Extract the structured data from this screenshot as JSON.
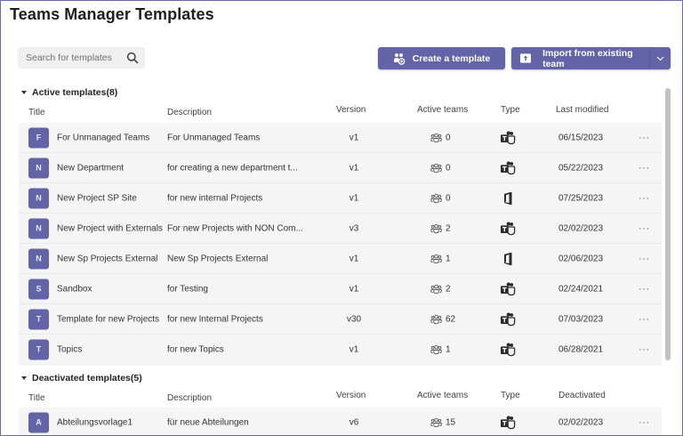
{
  "page": {
    "title": "Teams Manager Templates"
  },
  "search": {
    "placeholder": "Search for templates",
    "value": "",
    "icon": "search-icon"
  },
  "toolbar": {
    "create_label": "Create a template",
    "create_icon": "people-add-icon",
    "import_label": "Import from existing team",
    "import_icon": "import-icon",
    "import_menu_icon": "chevron-down-icon"
  },
  "colors": {
    "accent": "#6264a7",
    "frame_border": "#6a6db3",
    "row_bg": "#f5f5f5"
  },
  "active": {
    "header": "Active templates(8)",
    "columns": {
      "title": "Title",
      "description": "Description",
      "version": "Version",
      "active_teams": "Active teams",
      "type": "Type",
      "date": "Last modified"
    },
    "rows": [
      {
        "initial": "F",
        "title": "For Unmanaged Teams",
        "description": "For Unmanaged Teams",
        "version": "v1",
        "teams": "0",
        "type": "teams",
        "date": "06/15/2023",
        "more": "···"
      },
      {
        "initial": "N",
        "title": "New Department",
        "description": "for creating a new department t...",
        "version": "v1",
        "teams": "0",
        "type": "teams",
        "date": "05/22/2023",
        "more": "···"
      },
      {
        "initial": "N",
        "title": "New Project SP Site",
        "description": "for new internal Projects",
        "version": "v1",
        "teams": "0",
        "type": "office",
        "date": "07/25/2023",
        "more": "···"
      },
      {
        "initial": "N",
        "title": "New Project with Externals",
        "description": "For new Projects with NON Com...",
        "version": "v3",
        "teams": "2",
        "type": "teams",
        "date": "02/02/2023",
        "more": "···"
      },
      {
        "initial": "N",
        "title": "New Sp Projects External",
        "description": "New Sp Projects External",
        "version": "v1",
        "teams": "1",
        "type": "office",
        "date": "02/06/2023",
        "more": "···"
      },
      {
        "initial": "S",
        "title": "Sandbox",
        "description": "for Testing",
        "version": "v1",
        "teams": "2",
        "type": "teams",
        "date": "02/24/2021",
        "more": "···"
      },
      {
        "initial": "T",
        "title": "Template for new Projects",
        "description": "for new Internal Projects",
        "version": "v30",
        "teams": "62",
        "type": "teams",
        "date": "07/03/2023",
        "more": "···"
      },
      {
        "initial": "T",
        "title": "Topics",
        "description": "for new Topics",
        "version": "v1",
        "teams": "1",
        "type": "teams",
        "date": "06/28/2021",
        "more": "···"
      }
    ]
  },
  "deactivated": {
    "header": "Deactivated templates(5)",
    "columns": {
      "title": "Title",
      "description": "Description",
      "version": "Version",
      "active_teams": "Active teams",
      "type": "Type",
      "date": "Deactivated"
    },
    "rows": [
      {
        "initial": "A",
        "title": "Abteilungsvorlage1",
        "description": "für neue Abteilungen",
        "version": "v6",
        "teams": "15",
        "type": "teams",
        "date": "02/02/2023",
        "more": "···"
      }
    ]
  }
}
